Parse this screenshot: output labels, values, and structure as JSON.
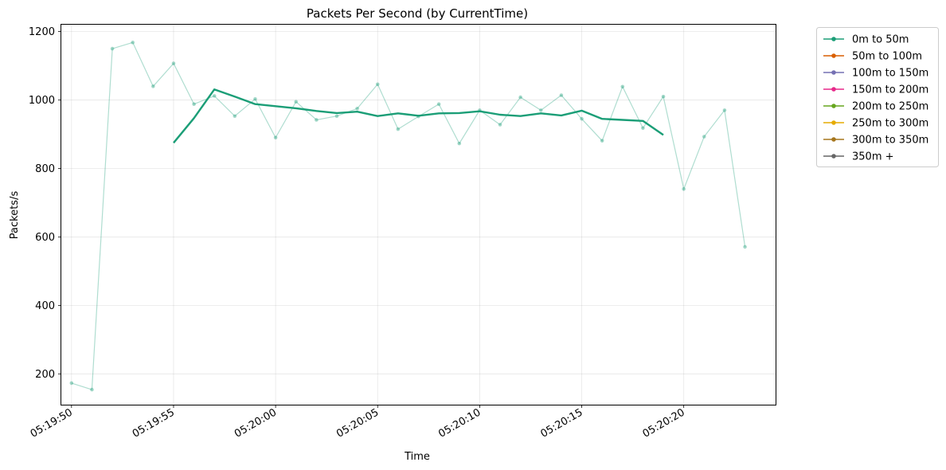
{
  "chart_data": {
    "type": "line",
    "title": "Packets Per Second (by CurrentTime)",
    "xlabel": "Time",
    "ylabel": "Packets/s",
    "x_time_format": "HH:MM:SS",
    "xlim": [
      "05:19:49.5",
      "05:20:24.5"
    ],
    "ylim": [
      110,
      1220
    ],
    "x_ticks": [
      "05:19:50",
      "05:19:55",
      "05:20:00",
      "05:20:05",
      "05:20:10",
      "05:20:15",
      "05:20:20"
    ],
    "y_ticks": [
      200,
      400,
      600,
      800,
      1000,
      1200
    ],
    "grid": true,
    "legend_position": "outside upper right",
    "legend": [
      {
        "label": "0m to 50m",
        "color": "#1b9e77"
      },
      {
        "label": "50m to 100m",
        "color": "#d95f02"
      },
      {
        "label": "100m to 150m",
        "color": "#7570b3"
      },
      {
        "label": "150m to 200m",
        "color": "#e7298a"
      },
      {
        "label": "200m to 250m",
        "color": "#66a61e"
      },
      {
        "label": "250m to 300m",
        "color": "#e6ab02"
      },
      {
        "label": "300m to 350m",
        "color": "#a6761d"
      },
      {
        "label": "350m +",
        "color": "#666666"
      }
    ],
    "series": [
      {
        "name": "0m to 50m",
        "color": "#1b9e77",
        "raw": {
          "x": [
            "05:19:50",
            "05:19:51",
            "05:19:52",
            "05:19:53",
            "05:19:54",
            "05:19:55",
            "05:19:56",
            "05:19:57",
            "05:19:58",
            "05:19:59",
            "05:20:00",
            "05:20:01",
            "05:20:02",
            "05:20:03",
            "05:20:04",
            "05:20:05",
            "05:20:06",
            "05:20:07",
            "05:20:08",
            "05:20:09",
            "05:20:10",
            "05:20:11",
            "05:20:12",
            "05:20:13",
            "05:20:14",
            "05:20:15",
            "05:20:16",
            "05:20:17",
            "05:20:18",
            "05:20:19",
            "05:20:20",
            "05:20:21",
            "05:20:22",
            "05:20:23"
          ],
          "y": [
            173,
            154,
            1150,
            1168,
            1040,
            1107,
            988,
            1012,
            953,
            1003,
            890,
            995,
            942,
            953,
            975,
            1046,
            915,
            952,
            988,
            873,
            970,
            928,
            1008,
            970,
            1014,
            945,
            881,
            1039,
            918,
            1010,
            740,
            893,
            970,
            571
          ]
        },
        "smoothed": {
          "x": [
            "05:19:55",
            "05:19:56",
            "05:19:57",
            "05:19:58",
            "05:19:59",
            "05:20:00",
            "05:20:01",
            "05:20:02",
            "05:20:03",
            "05:20:04",
            "05:20:05",
            "05:20:06",
            "05:20:07",
            "05:20:08",
            "05:20:09",
            "05:20:10",
            "05:20:11",
            "05:20:12",
            "05:20:13",
            "05:20:14",
            "05:20:15",
            "05:20:16",
            "05:20:17",
            "05:20:18",
            "05:20:19"
          ],
          "y": [
            875,
            947,
            1031,
            1010,
            988,
            982,
            976,
            968,
            962,
            966,
            953,
            961,
            954,
            961,
            962,
            967,
            957,
            953,
            961,
            955,
            969,
            945,
            942,
            939,
            898
          ]
        }
      }
    ]
  }
}
